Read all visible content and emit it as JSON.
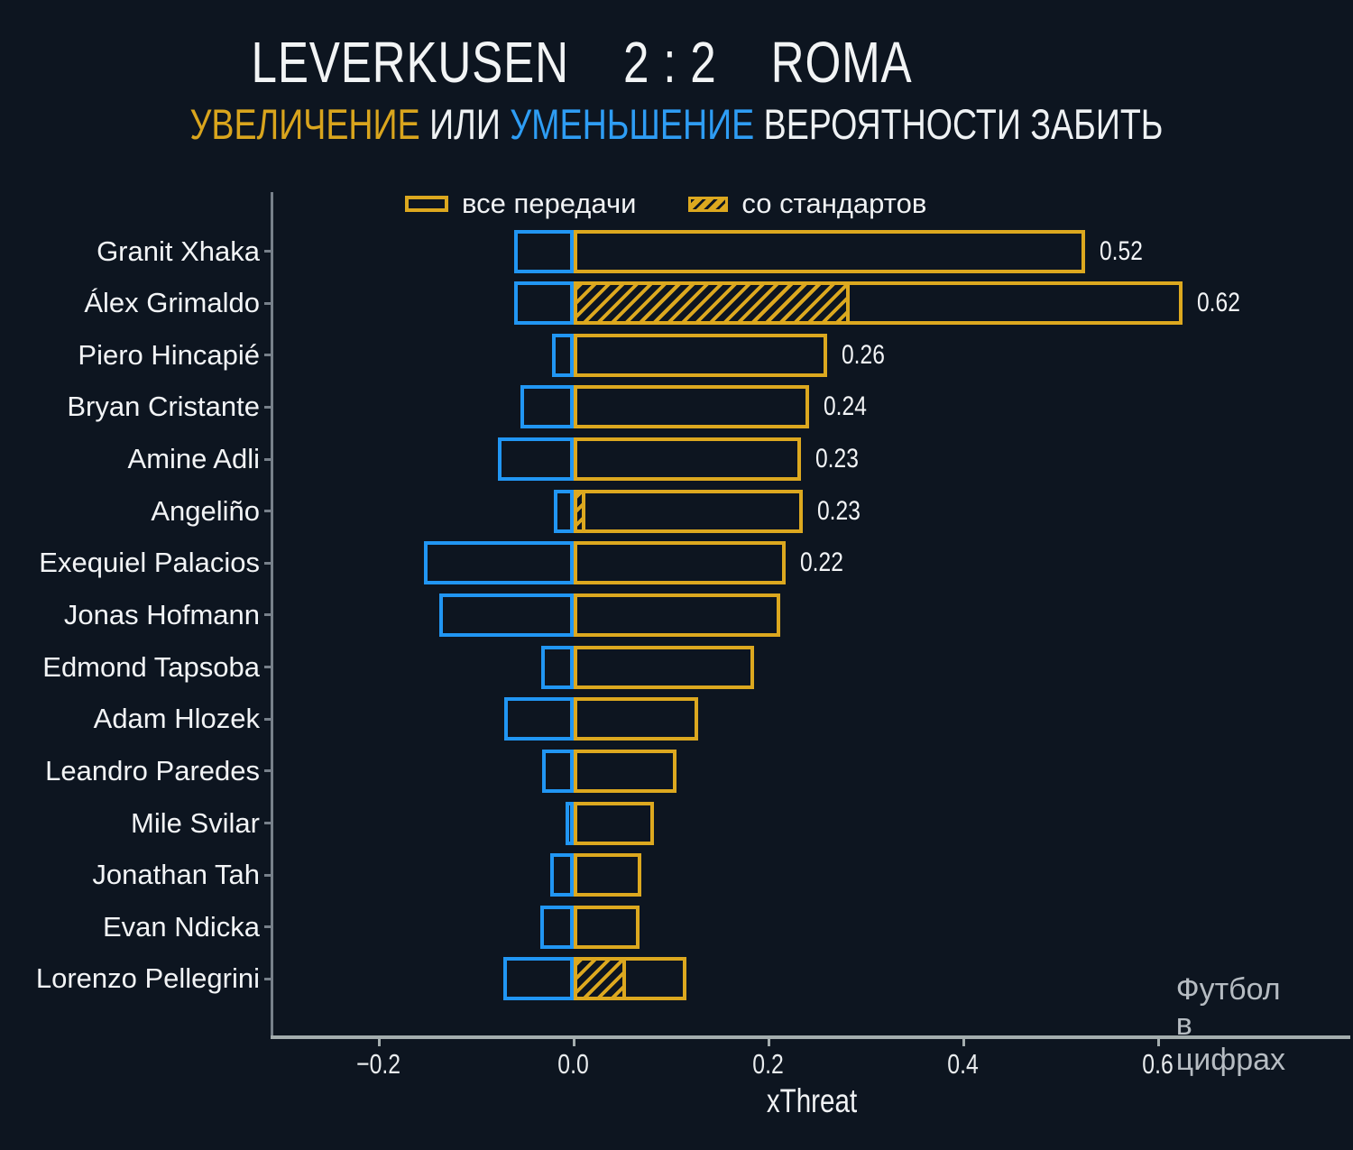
{
  "header": {
    "title": "LEVERKUSEN    2 : 2    ROMA",
    "subtitle_parts": [
      {
        "text": "УВЕЛИЧЕНИЕ",
        "color": "#d9a51d"
      },
      {
        "text": " ИЛИ ",
        "color": "#eef1f3"
      },
      {
        "text": "УМЕНЬШЕНИЕ",
        "color": "#2e9df4"
      },
      {
        "text": " ВЕРОЯТНОСТИ ЗАБИТЬ",
        "color": "#eef1f3"
      }
    ]
  },
  "footer": {
    "watermark": "Футбол в цифрах"
  },
  "colors": {
    "background": "#0d1520",
    "increase_gold": "#dca81f",
    "decrease_blue": "#2196f3",
    "text": "#eef1f3",
    "axis": "#a4adae",
    "watermark": "#b6bcc2"
  },
  "chart_data": {
    "type": "bar",
    "orientation": "horizontal",
    "title": "LEVERKUSEN    2 : 2    ROMA",
    "subtitle": "УВЕЛИЧЕНИЕ ИЛИ УМЕНЬШЕНИЕ ВЕРОЯТНОСТИ ЗАБИТЬ",
    "xlabel": "xThreat",
    "xlim": [
      -0.31,
      0.8
    ],
    "grid": false,
    "legend_position": "top-inside",
    "legend_labels": [
      "все передачи",
      "со стандартов"
    ],
    "x_ticks": [
      -0.2,
      0.0,
      0.2,
      0.4,
      0.6
    ],
    "x_tick_labels": [
      "−0.2",
      "0.0",
      "0.2",
      "0.4",
      "0.6"
    ],
    "players": [
      {
        "name": "Granit Xhaka",
        "xt_all": 0.525,
        "xt_negative": -0.061,
        "xt_set_pieces": 0,
        "value_label": "0.52"
      },
      {
        "name": "Álex Grimaldo",
        "xt_all": 0.625,
        "xt_negative": -0.061,
        "xt_set_pieces": 0.283,
        "value_label": "0.62"
      },
      {
        "name": "Piero Hincapié",
        "xt_all": 0.26,
        "xt_negative": -0.022,
        "xt_set_pieces": 0,
        "value_label": "0.26"
      },
      {
        "name": "Bryan Cristante",
        "xt_all": 0.242,
        "xt_negative": -0.055,
        "xt_set_pieces": 0,
        "value_label": "0.24"
      },
      {
        "name": "Amine Adli",
        "xt_all": 0.233,
        "xt_negative": -0.078,
        "xt_set_pieces": 0,
        "value_label": "0.23"
      },
      {
        "name": "Angeliño",
        "xt_all": 0.235,
        "xt_negative": -0.02,
        "xt_set_pieces": 0.012,
        "value_label": "0.23"
      },
      {
        "name": "Exequiel Palacios",
        "xt_all": 0.218,
        "xt_negative": -0.154,
        "xt_set_pieces": 0,
        "value_label": "0.22"
      },
      {
        "name": "Jonas Hofmann",
        "xt_all": 0.212,
        "xt_negative": -0.138,
        "xt_set_pieces": 0,
        "value_label": ""
      },
      {
        "name": "Edmond Tapsoba",
        "xt_all": 0.185,
        "xt_negative": -0.033,
        "xt_set_pieces": 0,
        "value_label": ""
      },
      {
        "name": "Adam Hlozek",
        "xt_all": 0.128,
        "xt_negative": -0.071,
        "xt_set_pieces": 0,
        "value_label": ""
      },
      {
        "name": "Leandro Paredes",
        "xt_all": 0.106,
        "xt_negative": -0.032,
        "xt_set_pieces": 0,
        "value_label": ""
      },
      {
        "name": "Mile Svilar",
        "xt_all": 0.082,
        "xt_negative": -0.008,
        "xt_set_pieces": 0,
        "value_label": ""
      },
      {
        "name": "Jonathan Tah",
        "xt_all": 0.069,
        "xt_negative": -0.024,
        "xt_set_pieces": 0,
        "value_label": ""
      },
      {
        "name": "Evan Ndicka",
        "xt_all": 0.068,
        "xt_negative": -0.034,
        "xt_set_pieces": 0,
        "value_label": ""
      },
      {
        "name": "Lorenzo Pellegrini",
        "xt_all": 0.116,
        "xt_negative": -0.072,
        "xt_set_pieces": 0.054,
        "value_label": ""
      }
    ]
  }
}
